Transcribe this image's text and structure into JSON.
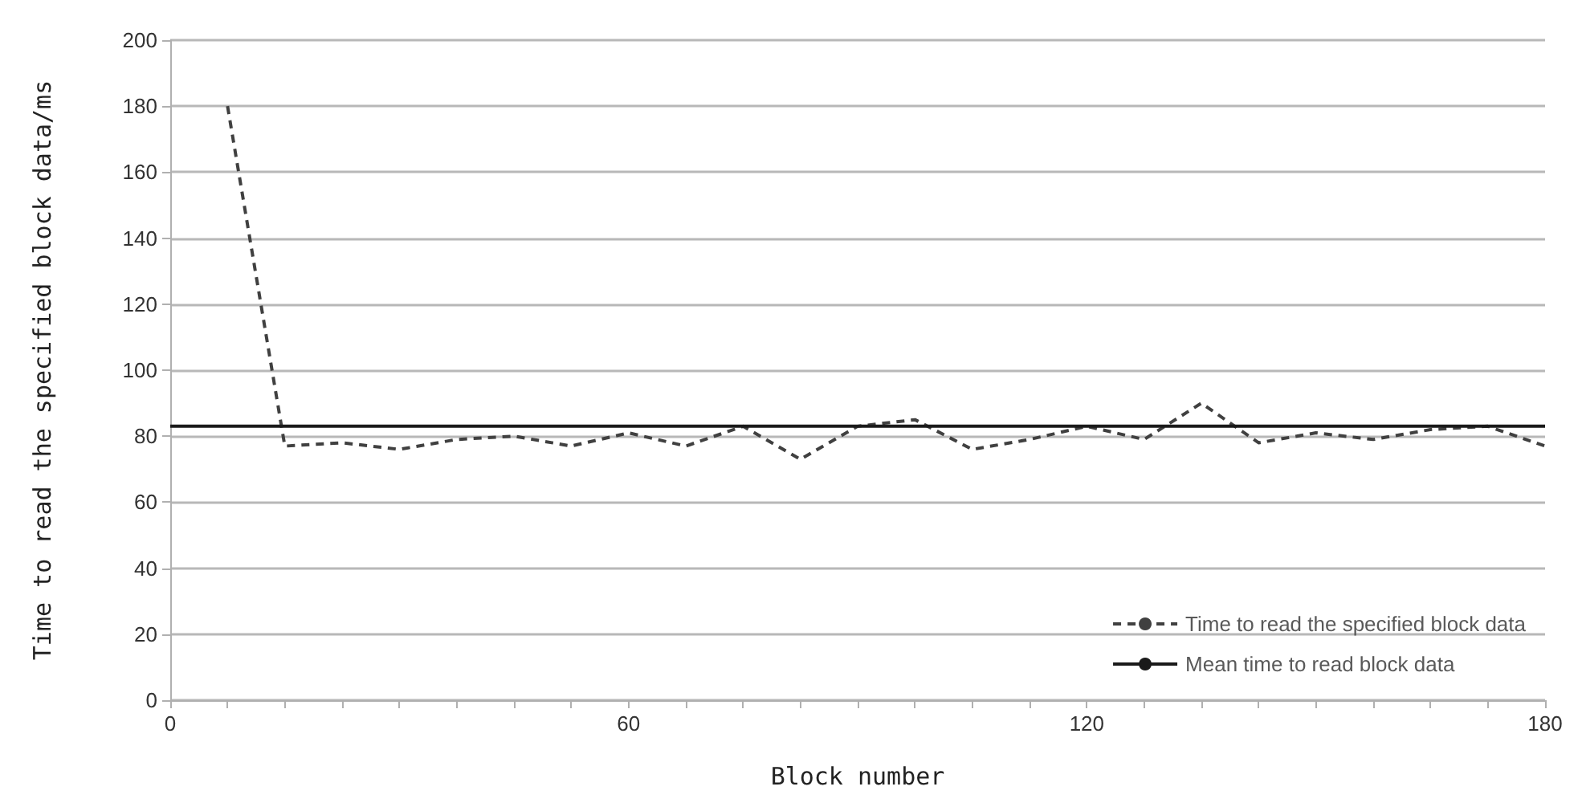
{
  "chart_data": {
    "type": "line",
    "xlabel": "Block number",
    "ylabel": "Time to read the specified block data/ms",
    "xlim": [
      0,
      180
    ],
    "xticks": [
      0,
      {
        "value": 7.5,
        "label": null
      },
      {
        "value": 15,
        "label": null
      },
      {
        "value": 22.5,
        "label": null
      },
      {
        "value": 30,
        "label": null
      },
      {
        "value": 37.5,
        "label": null
      },
      {
        "value": 45,
        "label": null
      },
      {
        "value": 52.5,
        "label": null
      },
      60,
      {
        "value": 67.5,
        "label": null
      },
      {
        "value": 75,
        "label": null
      },
      {
        "value": 82.5,
        "label": null
      },
      {
        "value": 90,
        "label": null
      },
      {
        "value": 97.5,
        "label": null
      },
      {
        "value": 105,
        "label": null
      },
      {
        "value": 112.5,
        "label": null
      },
      120,
      {
        "value": 127.5,
        "label": null
      },
      {
        "value": 135,
        "label": null
      },
      {
        "value": 142.5,
        "label": null
      },
      {
        "value": 150,
        "label": null
      },
      {
        "value": 157.5,
        "label": null
      },
      {
        "value": 165,
        "label": null
      },
      {
        "value": 172.5,
        "label": null
      },
      180
    ],
    "ylim": [
      0,
      200
    ],
    "yticks": [
      0,
      20,
      40,
      60,
      80,
      100,
      120,
      140,
      160,
      180,
      200
    ],
    "grid": "y",
    "legend": "bottom right",
    "marker": "none",
    "series": [
      {
        "name": "Time to read the specified block data",
        "color": "#404040",
        "line_style": "dashed",
        "x": [
          7.5,
          15,
          22.5,
          30,
          37.5,
          45,
          52.5,
          60,
          67.5,
          75,
          82.5,
          90,
          97.5,
          105,
          112.5,
          120,
          127.5,
          135,
          142.5,
          150,
          157.5,
          165,
          172.5,
          180
        ],
        "values": [
          180,
          77,
          78,
          76,
          79,
          80,
          77,
          81,
          77,
          83,
          73,
          83,
          85,
          76,
          79,
          83,
          79,
          90,
          78,
          81,
          79,
          82,
          83,
          77
        ]
      },
      {
        "name": "Mean time to read block data",
        "color": "#1a1a1a",
        "line_style": "solid",
        "x": [
          0,
          180
        ],
        "values": [
          83,
          83
        ]
      }
    ]
  }
}
